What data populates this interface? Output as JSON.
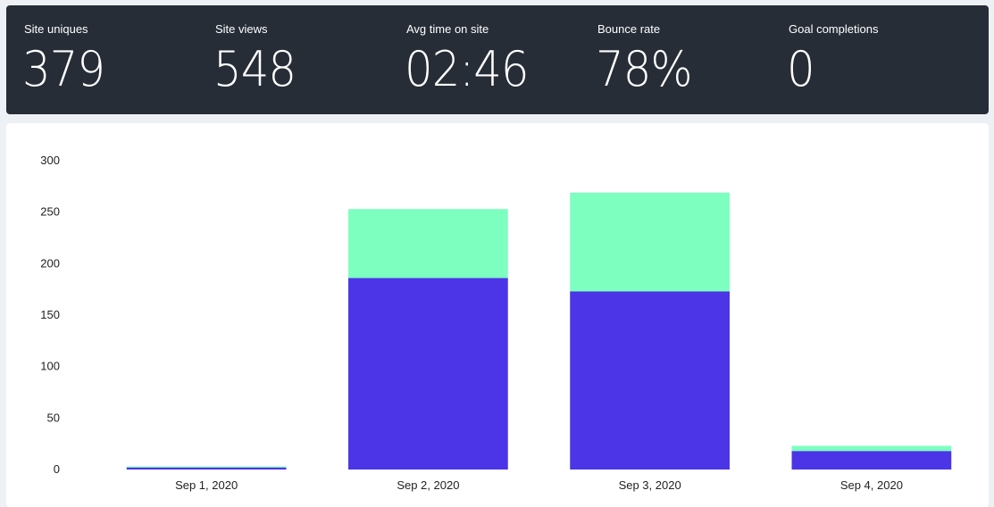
{
  "stats": [
    {
      "label": "Site uniques",
      "value": "379"
    },
    {
      "label": "Site views",
      "value": "548"
    },
    {
      "label": "Avg time on site",
      "value": "02:46"
    },
    {
      "label": "Bounce rate",
      "value": "78%"
    },
    {
      "label": "Goal completions",
      "value": "0"
    }
  ],
  "colors": {
    "header_bg": "#272d37",
    "series_primary": "#4b35e6",
    "series_secondary": "#7dffc0"
  },
  "chart_data": {
    "type": "bar",
    "stacked": true,
    "categories": [
      "Sep 1, 2020",
      "Sep 2, 2020",
      "Sep 3, 2020",
      "Sep 4, 2020"
    ],
    "series": [
      {
        "values": [
          2,
          186,
          173,
          18
        ],
        "color": "#4b35e6"
      },
      {
        "values": [
          1,
          67,
          96,
          5
        ],
        "color": "#7dffc0"
      }
    ],
    "ylim": [
      0,
      300
    ],
    "yticks": [
      "0",
      "50",
      "100",
      "150",
      "200",
      "250",
      "300"
    ],
    "grid": false,
    "title": "",
    "xlabel": "",
    "ylabel": ""
  }
}
